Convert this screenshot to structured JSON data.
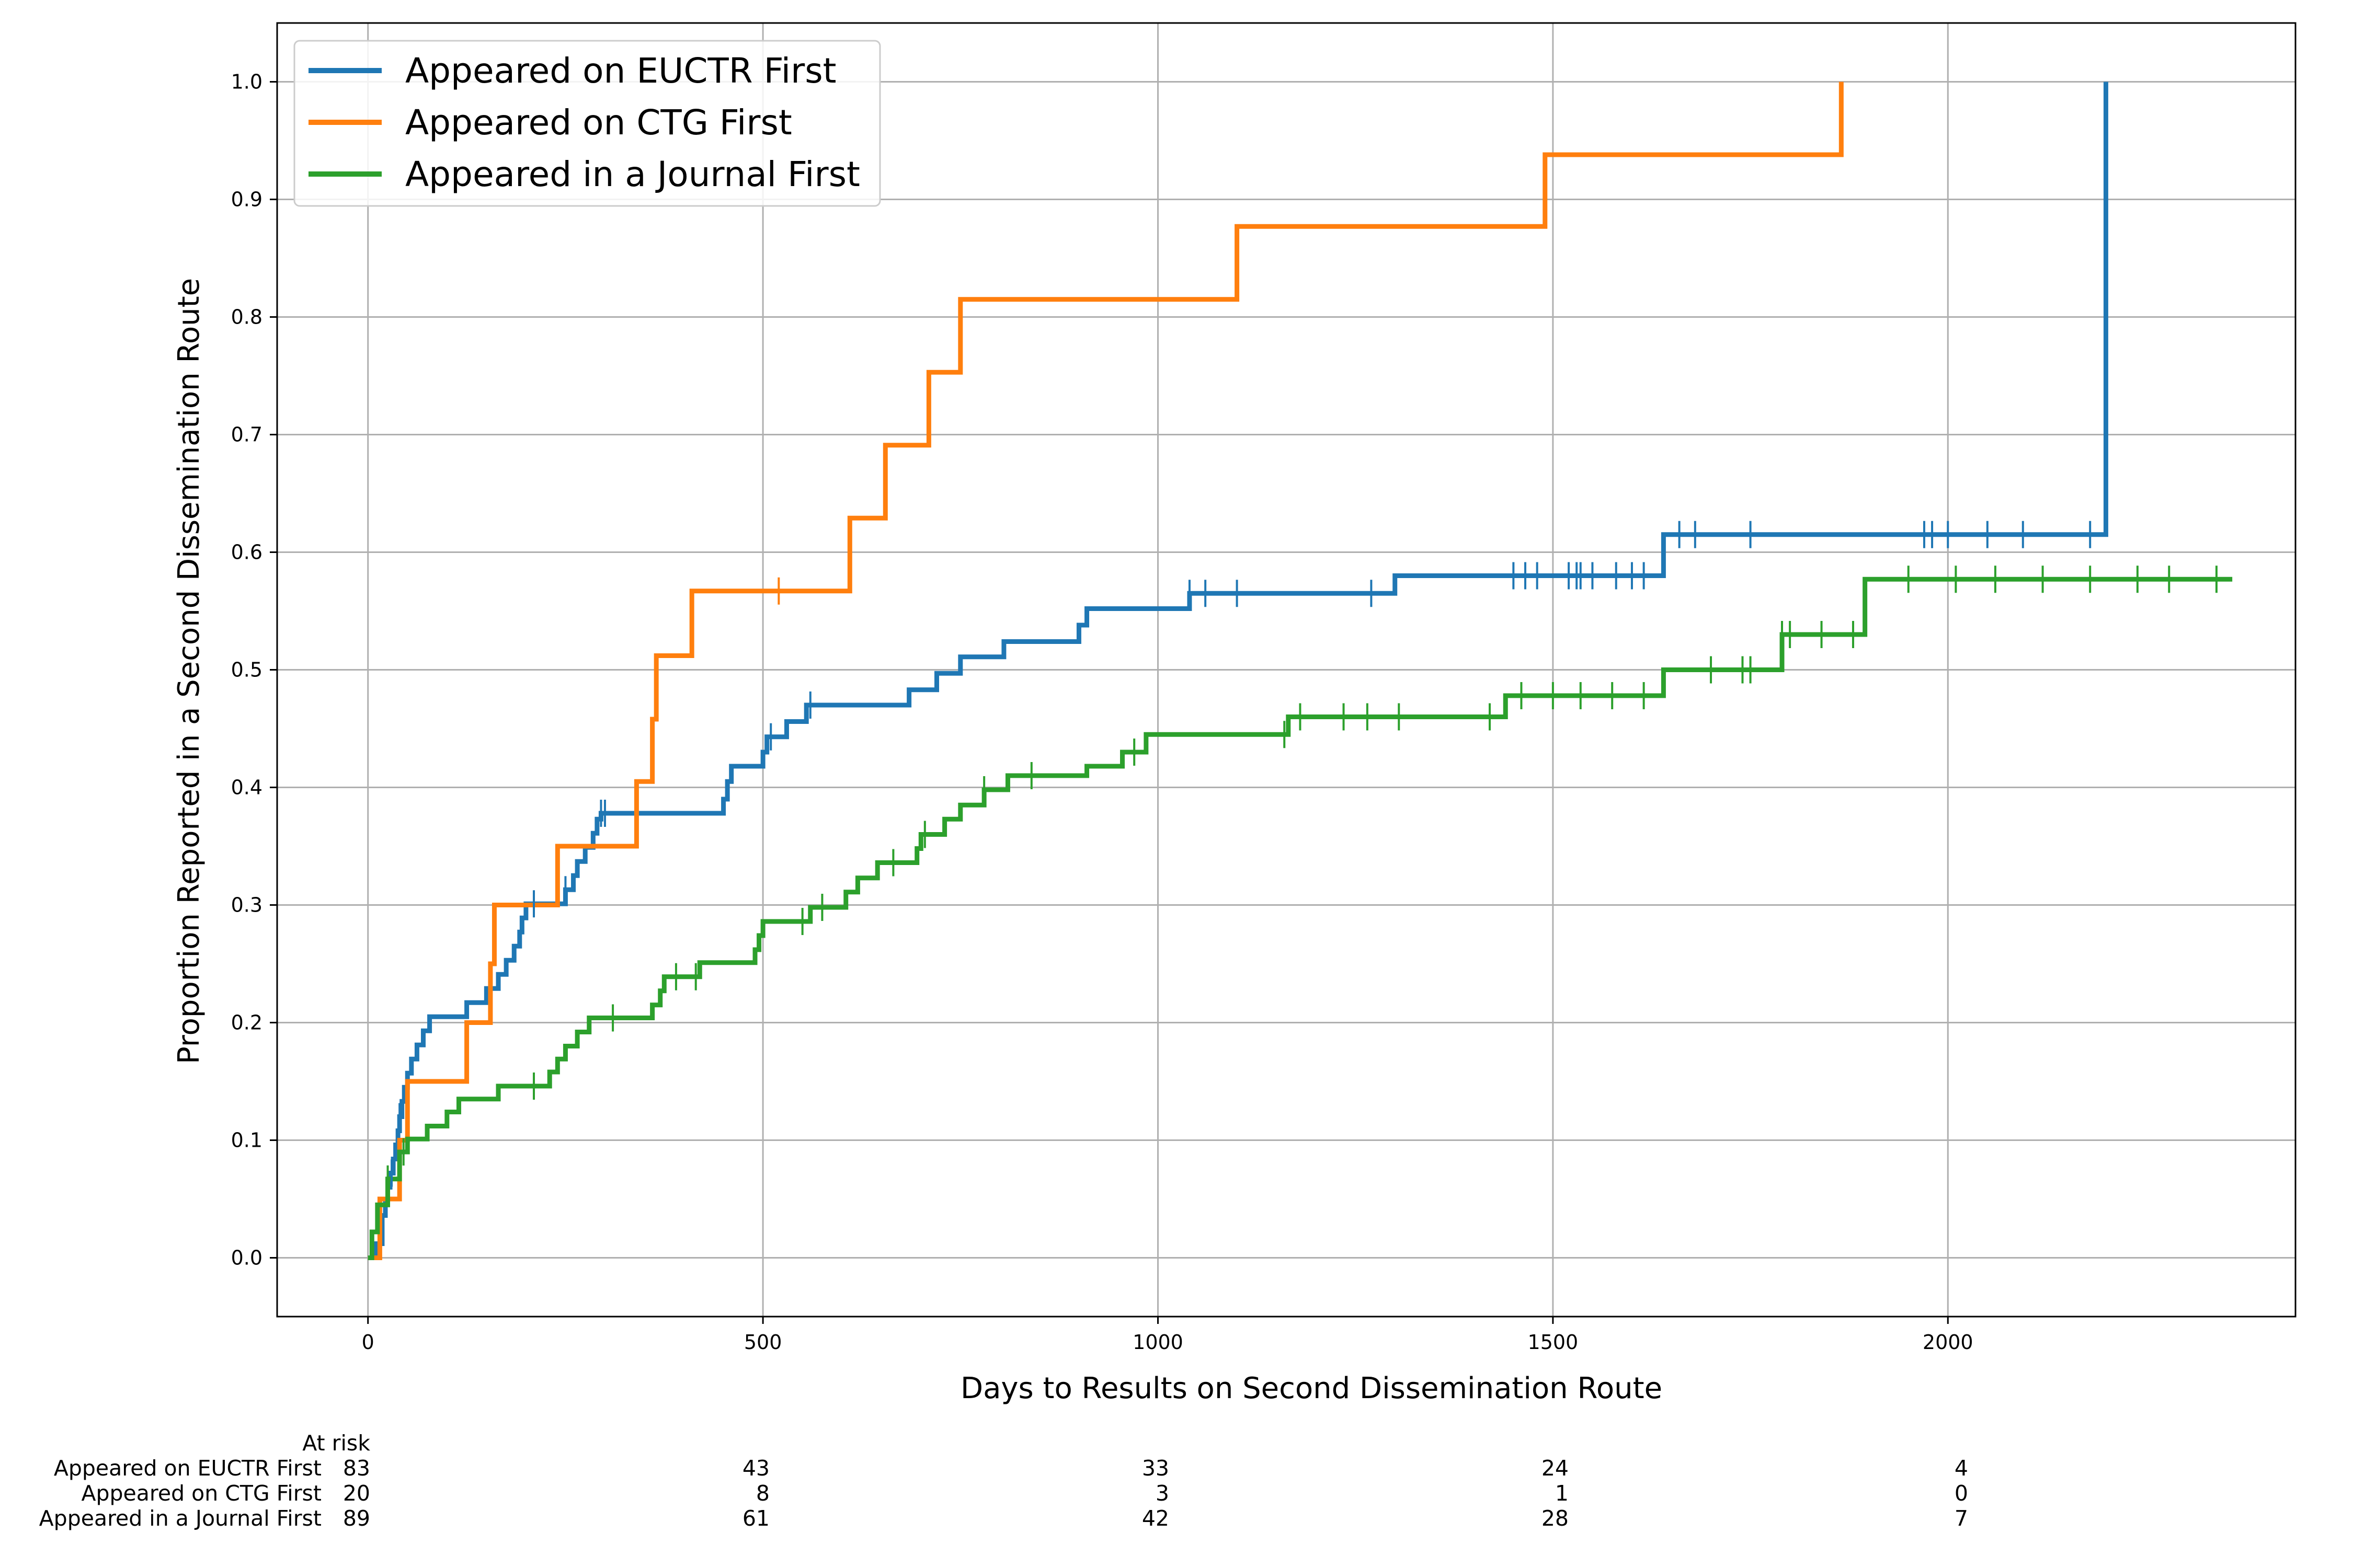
{
  "chart_data": {
    "type": "line",
    "step": "post",
    "xlabel": "Days to Results on Second Dissemination Route",
    "ylabel": "Proportion Reported in a Second Dissemination Route",
    "xlim": [
      -115,
      2440
    ],
    "ylim": [
      -0.05,
      1.05
    ],
    "xticks": [
      0,
      500,
      1000,
      1500,
      2000
    ],
    "yticks": [
      0.0,
      0.1,
      0.2,
      0.3,
      0.4,
      0.5,
      0.6,
      0.7,
      0.8,
      0.9,
      1.0
    ],
    "grid": true,
    "legend_position": "top-left",
    "series": [
      {
        "name": "Appeared on EUCTR First",
        "color": "#1f77b4",
        "x": [
          0,
          10,
          18,
          22,
          25,
          28,
          32,
          35,
          38,
          40,
          43,
          46,
          50,
          55,
          62,
          70,
          78,
          125,
          150,
          165,
          175,
          185,
          192,
          195,
          200,
          220,
          250,
          260,
          265,
          275,
          285,
          290,
          295,
          300,
          450,
          455,
          460,
          500,
          505,
          510,
          530,
          545,
          555,
          685,
          720,
          750,
          805,
          900,
          910,
          1040,
          1300,
          1640,
          2200
        ],
        "y": [
          0,
          0.012,
          0.036,
          0.048,
          0.06,
          0.072,
          0.084,
          0.096,
          0.108,
          0.12,
          0.133,
          0.145,
          0.157,
          0.169,
          0.181,
          0.193,
          0.205,
          0.217,
          0.229,
          0.241,
          0.253,
          0.265,
          0.277,
          0.289,
          0.301,
          0.301,
          0.313,
          0.325,
          0.337,
          0.349,
          0.361,
          0.373,
          0.378,
          0.378,
          0.39,
          0.405,
          0.418,
          0.43,
          0.443,
          0.443,
          0.456,
          0.456,
          0.47,
          0.483,
          0.497,
          0.511,
          0.524,
          0.538,
          0.552,
          0.565,
          0.58,
          0.615,
          1.0
        ],
        "end_x": 2200,
        "censored": [
          30,
          40,
          210,
          250,
          295,
          300,
          510,
          560,
          1040,
          1060,
          1100,
          1270,
          1450,
          1465,
          1480,
          1520,
          1530,
          1535,
          1550,
          1580,
          1600,
          1615,
          1660,
          1680,
          1750,
          1970,
          1980,
          2000,
          2050,
          2095,
          2180
        ]
      },
      {
        "name": "Appeared on CTG First",
        "color": "#ff7f0e",
        "x": [
          0,
          15,
          40,
          50,
          125,
          155,
          160,
          240,
          340,
          360,
          365,
          410,
          610,
          655,
          710,
          750,
          1100,
          1490,
          1865
        ],
        "y": [
          0,
          0.05,
          0.1,
          0.15,
          0.2,
          0.25,
          0.3,
          0.35,
          0.405,
          0.458,
          0.512,
          0.567,
          0.629,
          0.691,
          0.753,
          0.815,
          0.877,
          0.938,
          1.0
        ],
        "end_x": 1865,
        "censored": [
          520
        ]
      },
      {
        "name": "Appeared in a Journal First",
        "color": "#2ca02c",
        "x": [
          0,
          5,
          12,
          25,
          40,
          50,
          75,
          100,
          115,
          165,
          230,
          240,
          250,
          265,
          280,
          360,
          370,
          375,
          420,
          490,
          495,
          500,
          505,
          560,
          605,
          620,
          645,
          695,
          700,
          730,
          750,
          780,
          810,
          910,
          955,
          985,
          1165,
          1440,
          1640,
          1785,
          1790,
          1895,
          2340
        ],
        "y": [
          0,
          0.022,
          0.045,
          0.067,
          0.09,
          0.101,
          0.112,
          0.124,
          0.135,
          0.146,
          0.158,
          0.169,
          0.18,
          0.192,
          0.204,
          0.215,
          0.227,
          0.239,
          0.251,
          0.262,
          0.274,
          0.286,
          0.286,
          0.298,
          0.311,
          0.323,
          0.336,
          0.348,
          0.36,
          0.373,
          0.385,
          0.398,
          0.41,
          0.418,
          0.43,
          0.445,
          0.46,
          0.478,
          0.5,
          0.5,
          0.53,
          0.577,
          0.577
        ],
        "end_x": 2360,
        "censored": [
          25,
          45,
          210,
          310,
          390,
          415,
          550,
          575,
          665,
          705,
          780,
          840,
          970,
          1160,
          1180,
          1235,
          1265,
          1305,
          1420,
          1460,
          1500,
          1535,
          1575,
          1615,
          1700,
          1740,
          1750,
          1790,
          1800,
          1840,
          1880,
          1950,
          2010,
          2060,
          2120,
          2180,
          2240,
          2280,
          2340
        ]
      }
    ],
    "at_risk": {
      "header": "At risk",
      "rows": [
        {
          "label": "Appeared on EUCTR First",
          "values": [
            "83",
            "43",
            "33",
            "24",
            "4"
          ]
        },
        {
          "label": "Appeared on CTG First",
          "values": [
            "20",
            "8",
            "3",
            "1",
            "0"
          ]
        },
        {
          "label": "Appeared in a Journal First",
          "values": [
            "89",
            "61",
            "42",
            "28",
            "7"
          ]
        }
      ]
    }
  }
}
